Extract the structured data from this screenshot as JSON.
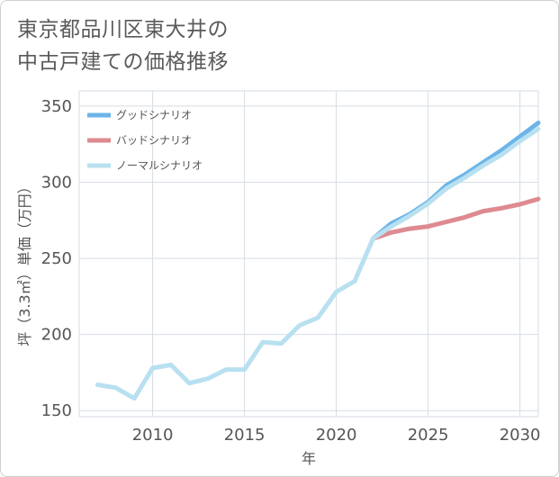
{
  "title_line1": "東京都品川区東大井の",
  "title_line2": "中古戸建ての価格推移",
  "chart_data": {
    "type": "line",
    "xlabel": "年",
    "ylabel": "坪（3.3㎡）単価（万円）",
    "xlim": [
      2006.0,
      2031.0
    ],
    "ylim": [
      146,
      360
    ],
    "xticks": [
      2010,
      2015,
      2020,
      2025,
      2030
    ],
    "yticks": [
      150,
      200,
      250,
      300,
      350
    ],
    "grid": true,
    "legend_position": "top-left",
    "series": [
      {
        "name": "グッドシナリオ",
        "color": "#6cb4e8",
        "x": [
          2022,
          2023,
          2024,
          2025,
          2026,
          2027,
          2028,
          2029,
          2030,
          2031
        ],
        "y": [
          263,
          273,
          279,
          287,
          298,
          305,
          313,
          321,
          330,
          339
        ]
      },
      {
        "name": "バッドシナリオ",
        "color": "#de8a90",
        "x": [
          2022,
          2023,
          2024,
          2025,
          2026,
          2027,
          2028,
          2029,
          2030,
          2031
        ],
        "y": [
          263,
          267,
          269.5,
          271,
          274,
          277,
          281,
          283,
          285.5,
          289
        ]
      },
      {
        "name": "ノーマルシナリオ",
        "color": "#b8e0f0",
        "x": [
          2007,
          2008,
          2009,
          2010,
          2011,
          2012,
          2013,
          2014,
          2015,
          2016,
          2017,
          2018,
          2019,
          2020,
          2021,
          2022,
          2023,
          2024,
          2025,
          2026,
          2027,
          2028,
          2029,
          2030,
          2031
        ],
        "y": [
          167,
          165,
          158,
          178,
          180,
          168,
          171,
          177,
          177,
          195,
          194,
          206,
          211,
          228,
          235,
          263,
          271,
          278,
          286,
          296,
          303,
          311,
          318,
          327,
          335
        ]
      }
    ]
  }
}
